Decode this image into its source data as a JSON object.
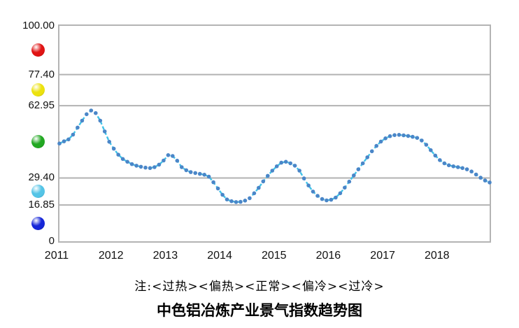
{
  "title": "中色铝冶炼产业景气指数趋势图",
  "note": "注:<过热><偏热><正常><偏冷><过冷>",
  "colors": {
    "line": "#41c3e8",
    "marker": "#4a86c8",
    "grid": "#b2b2b2",
    "plot_border": "#b4b4b4",
    "text": "#111111"
  },
  "chart_data": {
    "type": "line",
    "title": "中色铝冶炼产业景气指数趋势图",
    "xlabel": "",
    "ylabel": "",
    "ylim": [
      0,
      100
    ],
    "x_years": [
      "2011",
      "2012",
      "2013",
      "2014",
      "2015",
      "2016",
      "2017",
      "2018"
    ],
    "points_per_year": 12,
    "grid": "horizontal-only",
    "line_style": "dashed-with-round-markers",
    "yticks": [
      {
        "value": 100.0,
        "label": "100.00",
        "gridline": false
      },
      {
        "value": 77.4,
        "label": "77.40",
        "gridline": true
      },
      {
        "value": 62.95,
        "label": "62.95",
        "gridline": true
      },
      {
        "value": 29.4,
        "label": "29.40",
        "gridline": true
      },
      {
        "value": 16.85,
        "label": "16.85",
        "gridline": true
      },
      {
        "value": 0,
        "label": "0",
        "gridline": false
      }
    ],
    "zones": [
      {
        "key": "overheat",
        "label": "过热",
        "range": [
          77.4,
          100.0
        ],
        "color": "#e01414",
        "shade": "#8a0404"
      },
      {
        "key": "warm",
        "label": "偏热",
        "range": [
          62.95,
          77.4
        ],
        "color": "#ece20e",
        "shade": "#948c06"
      },
      {
        "key": "normal",
        "label": "正常",
        "range": [
          29.4,
          62.95
        ],
        "color": "#22a822",
        "shade": "#0a5e0a"
      },
      {
        "key": "cool",
        "label": "偏冷",
        "range": [
          16.85,
          29.4
        ],
        "color": "#54c4e6",
        "shade": "#1a7fa8"
      },
      {
        "key": "cold",
        "label": "过冷",
        "range": [
          0,
          16.85
        ],
        "color": "#1626d8",
        "shade": "#050d77"
      }
    ],
    "series": [
      {
        "name": "景气指数",
        "values": [
          45.4,
          46.4,
          47.3,
          49.5,
          52.8,
          56.0,
          59.0,
          60.7,
          59.5,
          56.0,
          51.0,
          46.2,
          43.0,
          40.2,
          38.2,
          36.9,
          35.8,
          35.1,
          34.6,
          34.2,
          34.0,
          34.4,
          35.6,
          37.5,
          40.0,
          39.6,
          37.4,
          34.4,
          33.0,
          32.1,
          31.7,
          31.3,
          30.9,
          30.0,
          27.4,
          24.5,
          21.6,
          19.4,
          18.6,
          18.2,
          18.3,
          18.9,
          20.0,
          22.3,
          24.8,
          27.8,
          30.4,
          32.8,
          34.8,
          36.5,
          36.9,
          36.2,
          35.1,
          32.8,
          29.2,
          25.9,
          23.1,
          21.1,
          19.6,
          19.0,
          19.3,
          20.3,
          22.3,
          24.9,
          27.7,
          30.6,
          33.4,
          36.2,
          39.0,
          41.8,
          44.3,
          46.3,
          47.8,
          48.8,
          49.3,
          49.4,
          49.2,
          48.9,
          48.5,
          48.0,
          46.8,
          44.8,
          42.3,
          39.8,
          37.7,
          36.2,
          35.3,
          34.8,
          34.4,
          34.0,
          33.4,
          32.4,
          31.0,
          29.5,
          28.2,
          27.3
        ]
      }
    ]
  }
}
